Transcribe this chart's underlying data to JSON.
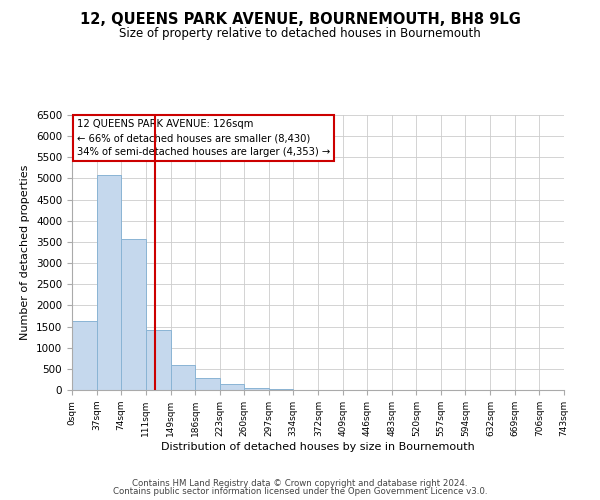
{
  "title": "12, QUEENS PARK AVENUE, BOURNEMOUTH, BH8 9LG",
  "subtitle": "Size of property relative to detached houses in Bournemouth",
  "xlabel": "Distribution of detached houses by size in Bournemouth",
  "ylabel": "Number of detached properties",
  "bin_edges": [
    0,
    37,
    74,
    111,
    149,
    186,
    223,
    260,
    297,
    334,
    372,
    409,
    446,
    483,
    520,
    557,
    594,
    632,
    669,
    706,
    743
  ],
  "bar_heights": [
    1630,
    5090,
    3570,
    1420,
    580,
    295,
    145,
    55,
    20,
    5,
    3,
    0,
    0,
    0,
    0,
    0,
    0,
    0,
    0,
    0
  ],
  "bar_color": "#c5d8ed",
  "bar_edge_color": "#8ab4d4",
  "vline_x": 126,
  "vline_color": "#cc0000",
  "ylim": [
    0,
    6500
  ],
  "yticks": [
    0,
    500,
    1000,
    1500,
    2000,
    2500,
    3000,
    3500,
    4000,
    4500,
    5000,
    5500,
    6000,
    6500
  ],
  "grid_color": "#cccccc",
  "annotation_title": "12 QUEENS PARK AVENUE: 126sqm",
  "annotation_line1": "← 66% of detached houses are smaller (8,430)",
  "annotation_line2": "34% of semi-detached houses are larger (4,353) →",
  "annotation_box_edge": "#cc0000",
  "footer1": "Contains HM Land Registry data © Crown copyright and database right 2024.",
  "footer2": "Contains public sector information licensed under the Open Government Licence v3.0.",
  "tick_labels": [
    "0sqm",
    "37sqm",
    "74sqm",
    "111sqm",
    "149sqm",
    "186sqm",
    "223sqm",
    "260sqm",
    "297sqm",
    "334sqm",
    "372sqm",
    "409sqm",
    "446sqm",
    "483sqm",
    "520sqm",
    "557sqm",
    "594sqm",
    "632sqm",
    "669sqm",
    "706sqm",
    "743sqm"
  ],
  "background_color": "#ffffff"
}
